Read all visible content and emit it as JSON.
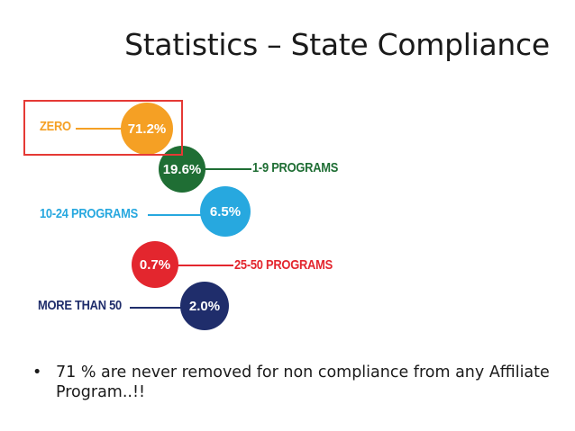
{
  "slide": {
    "title": "Statistics – State Compliance"
  },
  "colors": {
    "orange": "#f5a024",
    "green": "#1f6e34",
    "cyan": "#27a8df",
    "red": "#e3262e",
    "navy": "#1f2d6b",
    "highlight": "#e53935"
  },
  "infographic": {
    "zero": {
      "label": "ZERO",
      "value": "71.2%"
    },
    "one_to_nine": {
      "label": "1-9 PROGRAMS",
      "value": "19.6%"
    },
    "ten_to_24": {
      "label": "10-24 PROGRAMS",
      "value": "6.5%"
    },
    "twentyfive_to_50": {
      "label": "25-50 PROGRAMS",
      "value": "0.7%"
    },
    "more_than_50": {
      "label": "MORE THAN 50",
      "value": "2.0%"
    }
  },
  "bullets": [
    {
      "symbol": "•",
      "text": "71 % are never removed for non compliance from any Affiliate Program..!!"
    }
  ]
}
